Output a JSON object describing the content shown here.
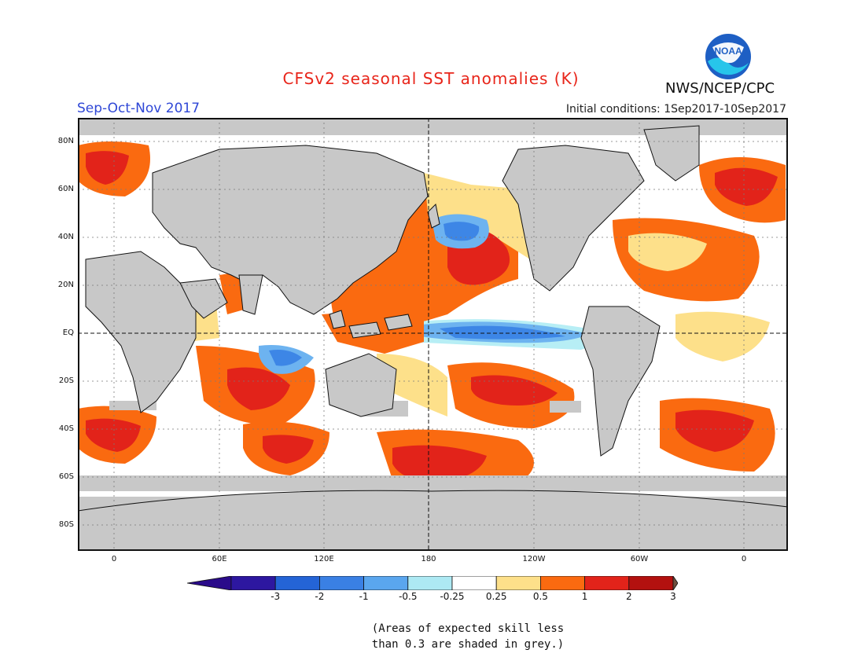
{
  "header": {
    "title": "CFSv2 seasonal SST anomalies (K)",
    "season": "Sep-Oct-Nov 2017",
    "initial_conditions": "Initial conditions: 1Sep2017-10Sep2017",
    "agency": "NWS/NCEP/CPC",
    "logo_text": "NOAA"
  },
  "map": {
    "lat_labels": [
      "80N",
      "60N",
      "40N",
      "20N",
      "EQ",
      "20S",
      "40S",
      "60S",
      "80S"
    ],
    "lon_labels": [
      "0",
      "60E",
      "120E",
      "180",
      "120W",
      "60W",
      "0"
    ],
    "colors": {
      "land": "#c8c8c8",
      "skill_mask": "#c8c8c8",
      "neg_3": "#3f22a6",
      "neg_2": "#1f5fd8",
      "neg_1": "#3d86e6",
      "neg_05": "#6db3f0",
      "neg_025": "#b7eef5",
      "neutral": "#ffffff",
      "pos_025": "#fde08a",
      "pos_05": "#fcb044",
      "pos_1": "#fa6a10",
      "pos_2": "#e2231a",
      "pos_3": "#a80f14",
      "pos_max": "#6e4a3a"
    }
  },
  "colorbar": {
    "labels": [
      "-3",
      "-2",
      "-1",
      "-0.5",
      "-0.25",
      "0.25",
      "0.5",
      "1",
      "2",
      "3"
    ],
    "colors": [
      "#2d17a0",
      "#2464d6",
      "#3a80e4",
      "#5aa6ee",
      "#ade9f3",
      "#ffffff",
      "#fde08a",
      "#fa6a10",
      "#e2231a",
      "#b3110f"
    ],
    "under_color": "#2a0b8a",
    "over_color": "#70503f"
  },
  "footnote": {
    "line1": "(Areas of expected skill less",
    "line2": "than 0.3 are shaded in grey.)"
  }
}
